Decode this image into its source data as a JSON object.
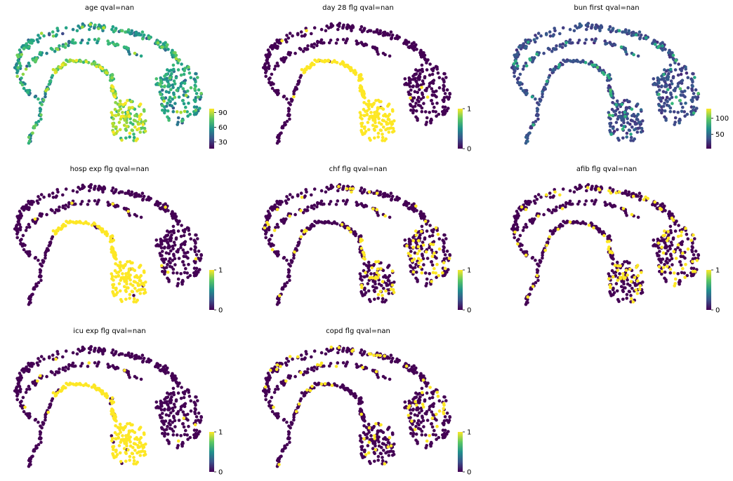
{
  "figure": {
    "ncols": 3
  },
  "chart_data": [
    {
      "type": "scatter",
      "title": "age qval=nan",
      "coloring": "continuous",
      "colormap": "viridis",
      "colorbar_ticks": [
        "30",
        "60",
        "90"
      ],
      "colorbar_values": [
        30,
        60,
        90
      ],
      "value_range": [
        16,
        98
      ],
      "color_pattern": "yellow-green values concentrated along the bridge and lower lobe; mixed teal and green elsewhere"
    },
    {
      "type": "scatter",
      "title": "day 28 flg qval=nan",
      "coloring": "binary",
      "colormap": "viridis",
      "colorbar_ticks": [
        "0",
        "1"
      ],
      "colorbar_values": [
        0,
        1
      ],
      "value_range": [
        0,
        1
      ],
      "color_pattern": "value 1 on the bridge and lower lobe; 0 elsewhere"
    },
    {
      "type": "scatter",
      "title": "bun first qval=nan",
      "coloring": "continuous",
      "colormap": "viridis",
      "colorbar_ticks": [
        "50",
        "100"
      ],
      "colorbar_values": [
        50,
        100
      ],
      "value_range": [
        5,
        130
      ],
      "color_pattern": "mostly low (dark blue), scattered teal/green higher values"
    },
    {
      "type": "scatter",
      "title": "hosp exp flg qval=nan",
      "coloring": "binary",
      "colormap": "viridis",
      "colorbar_ticks": [
        "0",
        "1"
      ],
      "colorbar_values": [
        0,
        1
      ],
      "value_range": [
        0,
        1
      ],
      "color_pattern": "value 1 on the bridge and lower lobe; 0 elsewhere"
    },
    {
      "type": "scatter",
      "title": "chf flg qval=nan",
      "coloring": "binary",
      "colormap": "viridis",
      "colorbar_ticks": [
        "0",
        "1"
      ],
      "colorbar_values": [
        0,
        1
      ],
      "value_range": [
        0,
        1
      ],
      "color_pattern": "value 1 scattered, denser on the right cluster and lower lobe"
    },
    {
      "type": "scatter",
      "title": "afib flg qval=nan",
      "coloring": "binary",
      "colormap": "viridis",
      "colorbar_ticks": [
        "0",
        "1"
      ],
      "colorbar_values": [
        0,
        1
      ],
      "value_range": [
        0,
        1
      ],
      "color_pattern": "value 1 scattered, denser on the lower lobe and right cluster"
    },
    {
      "type": "scatter",
      "title": "icu exp flg qval=nan",
      "coloring": "binary",
      "colormap": "viridis",
      "colorbar_ticks": [
        "0",
        "1"
      ],
      "colorbar_values": [
        0,
        1
      ],
      "value_range": [
        0,
        1
      ],
      "color_pattern": "value 1 on the bridge and lower lobe; 0 elsewhere"
    },
    {
      "type": "scatter",
      "title": "copd flg qval=nan",
      "coloring": "binary",
      "colormap": "viridis",
      "colorbar_ticks": [
        "0",
        "1"
      ],
      "colorbar_values": [
        0,
        1
      ],
      "value_range": [
        0,
        1
      ],
      "color_pattern": "value 1 sparsely scattered across all regions"
    }
  ]
}
